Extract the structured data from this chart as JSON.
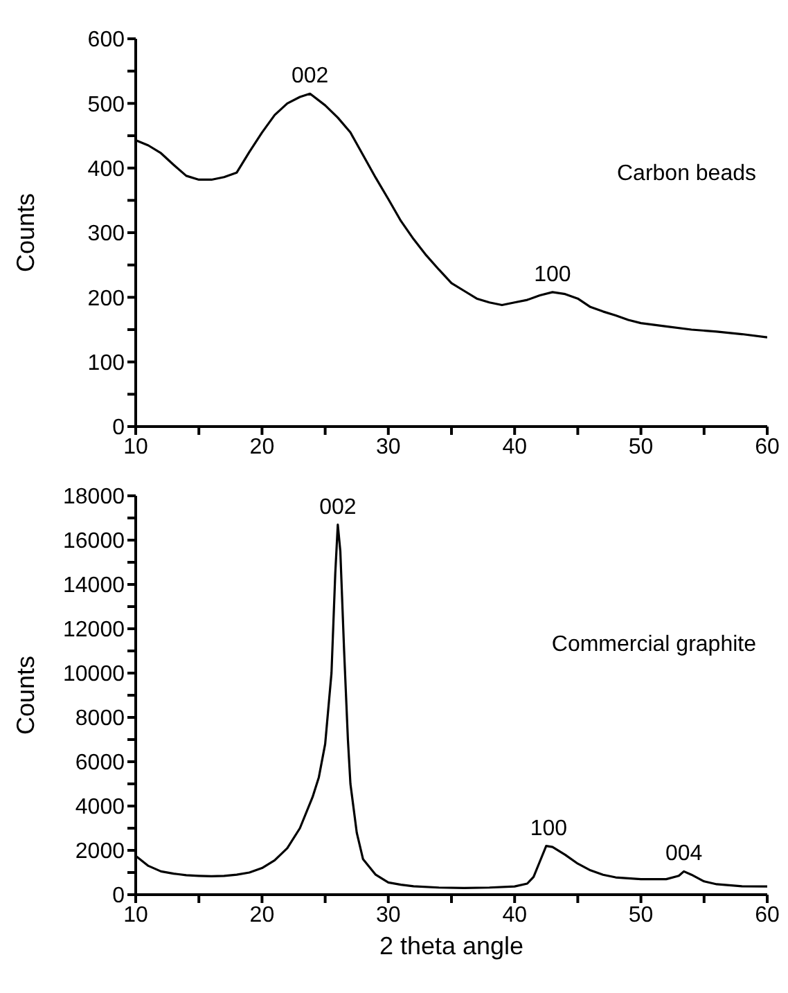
{
  "chart_data": [
    {
      "type": "line",
      "ylabel": "Counts",
      "xlim": [
        10,
        60
      ],
      "ylim": [
        0,
        600
      ],
      "xticks": [
        10,
        {
          "value": 15,
          "label": null
        },
        20,
        {
          "value": 25,
          "label": null
        },
        30,
        {
          "value": 35,
          "label": null
        },
        40,
        {
          "value": 45,
          "label": null
        },
        50,
        {
          "value": 55,
          "label": null
        },
        60
      ],
      "yticks": [
        0,
        {
          "value": 50,
          "label": null
        },
        100,
        {
          "value": 150,
          "label": null
        },
        200,
        {
          "value": 250,
          "label": null
        },
        300,
        {
          "value": 350,
          "label": null
        },
        400,
        {
          "value": 450,
          "label": null
        },
        500,
        {
          "value": 550,
          "label": null
        },
        600
      ],
      "marker": "none",
      "line_style": "solid",
      "annotations": [
        {
          "text": "002",
          "x": 23.8,
          "y": 515
        },
        {
          "text": "100",
          "x": 43,
          "y": 208
        }
      ],
      "series": [
        {
          "name": "Carbon beads",
          "color": "#000000",
          "x": [
            10,
            11,
            12,
            13,
            14,
            15,
            16,
            17,
            18,
            19,
            20,
            21,
            22,
            23,
            23.8,
            25,
            26,
            27,
            28,
            29,
            30,
            31,
            32,
            33,
            34,
            35,
            36,
            37,
            38,
            39,
            40,
            41,
            42,
            43,
            44,
            45,
            46,
            47,
            48,
            49,
            50,
            52,
            54,
            56,
            58,
            60
          ],
          "values": [
            443,
            435,
            423,
            405,
            388,
            382,
            382,
            386,
            393,
            425,
            455,
            482,
            500,
            510,
            515,
            497,
            478,
            455,
            420,
            385,
            352,
            318,
            290,
            265,
            243,
            222,
            210,
            198,
            192,
            188,
            192,
            196,
            203,
            208,
            205,
            198,
            185,
            178,
            172,
            165,
            160,
            155,
            150,
            147,
            143,
            138
          ]
        }
      ]
    },
    {
      "type": "line",
      "xlabel": "2 theta angle",
      "ylabel": "Counts",
      "xlim": [
        10,
        60
      ],
      "ylim": [
        0,
        18000
      ],
      "xticks": [
        10,
        {
          "value": 15,
          "label": null
        },
        20,
        {
          "value": 25,
          "label": null
        },
        30,
        {
          "value": 35,
          "label": null
        },
        40,
        {
          "value": 45,
          "label": null
        },
        50,
        {
          "value": 55,
          "label": null
        },
        60
      ],
      "yticks": [
        0,
        {
          "value": 1000,
          "label": null
        },
        2000,
        {
          "value": 3000,
          "label": null
        },
        4000,
        {
          "value": 5000,
          "label": null
        },
        6000,
        {
          "value": 7000,
          "label": null
        },
        8000,
        {
          "value": 9000,
          "label": null
        },
        10000,
        {
          "value": 11000,
          "label": null
        },
        12000,
        {
          "value": 13000,
          "label": null
        },
        14000,
        {
          "value": 15000,
          "label": null
        },
        16000,
        {
          "value": 17000,
          "label": null
        },
        18000
      ],
      "marker": "none",
      "line_style": "solid",
      "annotations": [
        {
          "text": "002",
          "x": 26,
          "y": 16700
        },
        {
          "text": "100",
          "x": 42.7,
          "y": 2200
        },
        {
          "text": "004",
          "x": 53.4,
          "y": 1050
        }
      ],
      "series": [
        {
          "name": "Commercial graphite",
          "color": "#000000",
          "x": [
            10,
            11,
            12,
            13,
            14,
            15,
            16,
            17,
            18,
            19,
            20,
            21,
            22,
            23,
            24,
            24.5,
            25,
            25.5,
            25.8,
            26,
            26.2,
            26.5,
            26.8,
            27,
            27.5,
            28,
            29,
            30,
            31,
            32,
            34,
            36,
            38,
            40,
            41,
            41.5,
            42,
            42.5,
            43,
            44,
            45,
            46,
            47,
            48,
            50,
            52,
            53,
            53.4,
            54,
            55,
            56,
            58,
            60
          ],
          "values": [
            1750,
            1300,
            1050,
            950,
            880,
            850,
            830,
            850,
            900,
            1000,
            1200,
            1550,
            2100,
            3000,
            4400,
            5300,
            6800,
            10000,
            14500,
            16700,
            15500,
            11000,
            7000,
            5000,
            2800,
            1600,
            900,
            550,
            450,
            380,
            320,
            300,
            320,
            370,
            500,
            800,
            1500,
            2200,
            2150,
            1800,
            1400,
            1100,
            900,
            780,
            700,
            700,
            850,
            1050,
            900,
            600,
            470,
            380,
            370
          ]
        }
      ]
    }
  ]
}
